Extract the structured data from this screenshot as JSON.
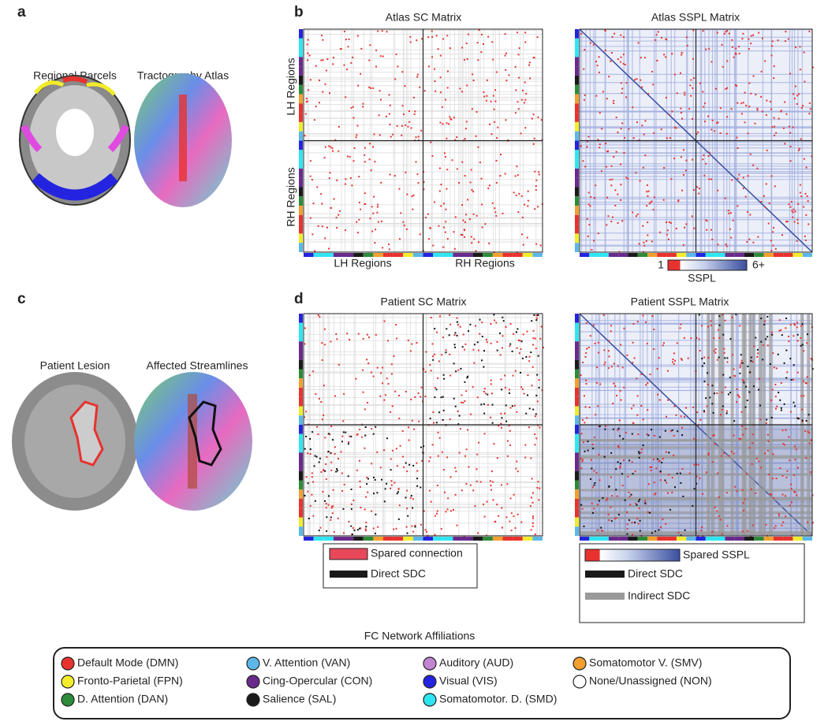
{
  "panels": {
    "a": {
      "label": "a",
      "left_title": "Regional Parcels",
      "right_title": "Tractography Atlas"
    },
    "b": {
      "label": "b",
      "sc_title": "Atlas SC Matrix",
      "sspl_title": "Atlas SSPL Matrix",
      "y_top": "LH Regions",
      "y_bottom": "RH Regions",
      "x_left": "LH Regions",
      "x_right": "RH Regions",
      "colorbar_min": "1",
      "colorbar_max": "6+",
      "colorbar_label": "SSPL"
    },
    "c": {
      "label": "c",
      "left_title": "Patient Lesion",
      "right_title": "Affected Streamlines"
    },
    "d": {
      "label": "d",
      "sc_title": "Patient SC Matrix",
      "sspl_title": "Patient SSPL Matrix",
      "sc_legend": [
        "Spared connection",
        "Direct SDC"
      ],
      "sspl_legend": [
        "Spared SSPL",
        "Direct SDC",
        "Indirect SDC"
      ]
    }
  },
  "networks": {
    "title": "FC Network Affiliations",
    "items": [
      {
        "label": "Default Mode (DMN)",
        "color": "#e8322e"
      },
      {
        "label": "Fronto-Parietal (FPN)",
        "color": "#f2ec2a"
      },
      {
        "label": "D. Attention (DAN)",
        "color": "#2e8b3a"
      },
      {
        "label": "V. Attention (VAN)",
        "color": "#5cb8e8"
      },
      {
        "label": "Cing-Opercular (CON)",
        "color": "#6a2a8c"
      },
      {
        "label": "Salience (SAL)",
        "color": "#1a1a1a"
      },
      {
        "label": "Auditory (AUD)",
        "color": "#c285d2"
      },
      {
        "label": "Visual (VIS)",
        "color": "#2424e0"
      },
      {
        "label": "Somatomotor. D. (SMD)",
        "color": "#2ee6f2"
      },
      {
        "label": "Somatomotor V. (SMV)",
        "color": "#f2a02e"
      },
      {
        "label": "None/Unassigned (NON)",
        "color": "#ffffff"
      }
    ]
  }
}
